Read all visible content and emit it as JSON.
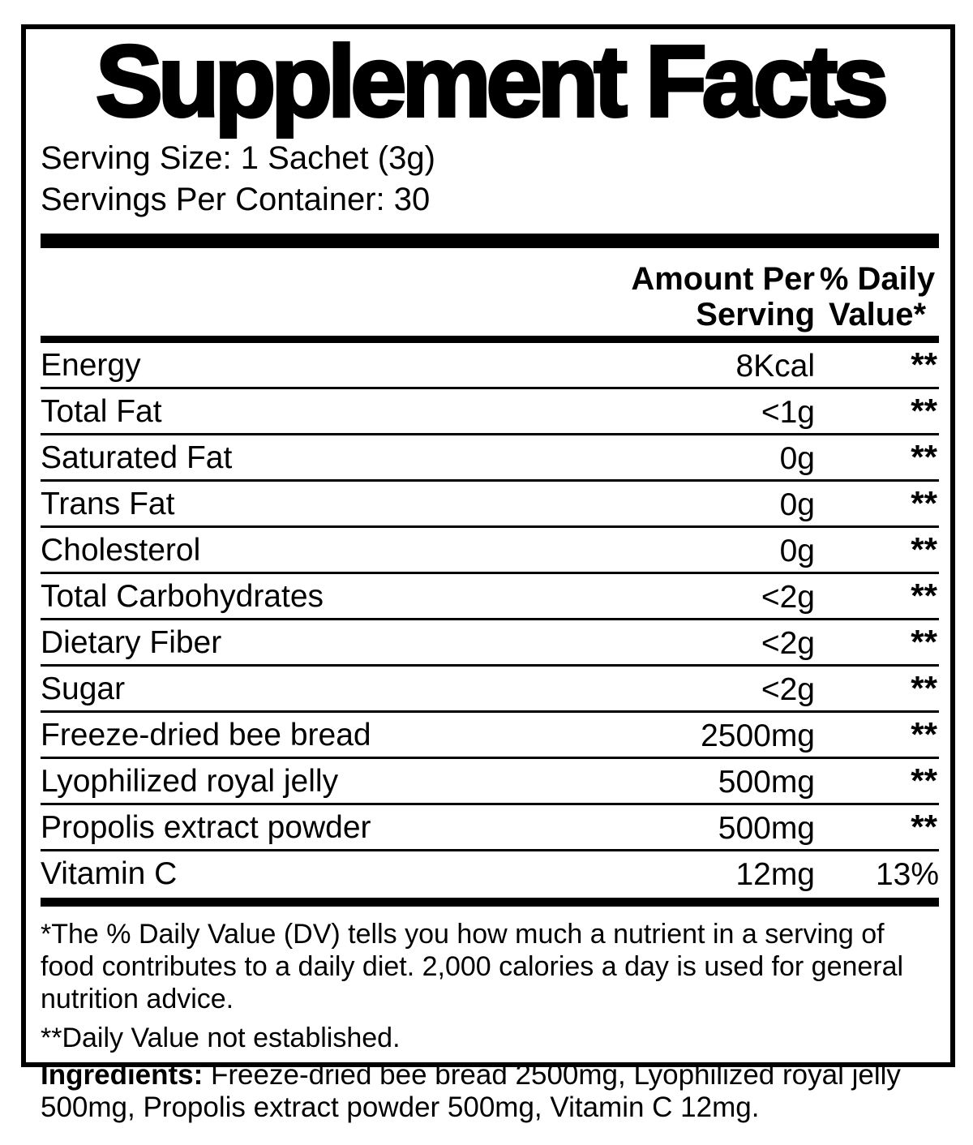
{
  "title": "Supplement Facts",
  "serving": {
    "size": "Serving Size: 1 Sachet (3g)",
    "per_container": "Servings Per Container: 30"
  },
  "header": {
    "amount_line1": "Amount Per",
    "amount_line2": "Serving",
    "dv_line1": "% Daily",
    "dv_line2": "Value*"
  },
  "rows": [
    {
      "label": "Energy",
      "amount": "8Kcal",
      "dv": "**"
    },
    {
      "label": "Total Fat",
      "amount": "<1g",
      "dv": "**"
    },
    {
      "label": "Saturated Fat",
      "amount": "0g",
      "dv": "**"
    },
    {
      "label": "Trans Fat",
      "amount": "0g",
      "dv": "**"
    },
    {
      "label": "Cholesterol",
      "amount": "0g",
      "dv": "**"
    },
    {
      "label": "Total Carbohydrates",
      "amount": "<2g",
      "dv": "**"
    },
    {
      "label": "Dietary Fiber",
      "amount": "<2g",
      "dv": "**"
    },
    {
      "label": "Sugar",
      "amount": "<2g",
      "dv": "**"
    },
    {
      "label": "Freeze-dried bee bread",
      "amount": "2500mg",
      "dv": "**"
    },
    {
      "label": "Lyophilized royal jelly",
      "amount": "500mg",
      "dv": "**"
    },
    {
      "label": "Propolis extract powder",
      "amount": "500mg",
      "dv": "**"
    },
    {
      "label": "Vitamin C",
      "amount": "12mg",
      "dv": "13%"
    }
  ],
  "footnotes": {
    "daily_value": "*The % Daily Value (DV) tells you how much a nutrient in a serving of food contributes to a daily diet. 2,000 calories a day is used for general nutrition advice.",
    "not_established": "**Daily Value not established."
  },
  "ingredients": {
    "label": "Ingredients:",
    "text": " Freeze-dried bee bread 2500mg, Lyophilized royal jelly 500mg, Propolis extract powder 500mg, Vitamin C 12mg."
  },
  "colors": {
    "text": "#000000",
    "background": "#ffffff"
  }
}
